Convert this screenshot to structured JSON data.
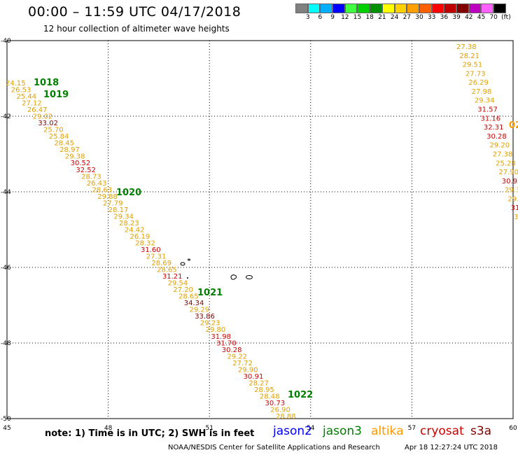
{
  "header": {
    "title": "00:00 – 11:59 UTC 04/17/2018",
    "subtitle": "12 hour collection of altimeter wave heights"
  },
  "legend": {
    "colors": [
      "#808080",
      "#00ffff",
      "#00b0ff",
      "#0000ff",
      "#40ff40",
      "#00d000",
      "#009000",
      "#ffff00",
      "#ffd000",
      "#ffa000",
      "#ff6000",
      "#ff0000",
      "#c00000",
      "#800000",
      "#c000c0",
      "#ff60ff",
      "#000000"
    ],
    "labels": [
      "3",
      "6",
      "9",
      "12",
      "15",
      "18",
      "21",
      "24",
      "27",
      "30",
      "33",
      "36",
      "39",
      "42",
      "45",
      "70",
      "(ft)"
    ]
  },
  "map": {
    "lon_ticks": [
      "45",
      "48",
      "51",
      "54",
      "57",
      "60"
    ],
    "lat_ticks": [
      "-40",
      "-42",
      "-44",
      "-46",
      "-48",
      "-50"
    ],
    "lon_range": [
      45,
      60
    ],
    "lat_range": [
      -40,
      -50
    ]
  },
  "track_left": {
    "values": [
      "24.15",
      "26.53",
      "25.44",
      "27.12",
      "26.47",
      "29.02",
      "33.02",
      "25.70",
      "25.84",
      "28.45",
      "28.97",
      "29.38",
      "30.52",
      "32.52",
      "28.73",
      "26.43",
      "28.63",
      "29.88",
      "27.79",
      "28.17",
      "29.34",
      "28.23",
      "24.42",
      "26.19",
      "28.32",
      "31.60",
      "27.31",
      "28.69",
      "28.65",
      "31.21",
      "29.54",
      "27.20",
      "28.65",
      "34.34",
      "29.29",
      "33.86",
      "29.23",
      "29.80",
      "31.98",
      "31.70",
      "30.28",
      "29.22",
      "27.72",
      "29.90",
      "30.91",
      "28.27",
      "28.95",
      "28.48",
      "30.73",
      "26.90",
      "28.88"
    ]
  },
  "track_right": {
    "values": [
      "27.38",
      "28.21",
      "29.51",
      "27.73",
      "26.29",
      "27.98",
      "29.34",
      "31.57",
      "31.16",
      "32.31",
      "30.28",
      "29.20",
      "27.38",
      "25.28",
      "27.90",
      "30.92",
      "29.3",
      "29.",
      "31",
      "3"
    ]
  },
  "pressure_labels": [
    "1018",
    "1019",
    "1020",
    "1021",
    "1022",
    "02"
  ],
  "note": "note: 1) Time is in UTC; 2) SWH is in feet",
  "satellites": {
    "jason2": "jason2",
    "jason3": "jason3",
    "altika": "altika",
    "cryosat": "cryosat",
    "s3a": "s3a"
  },
  "colors": {
    "jason2": "#0000ff",
    "jason3": "#008000",
    "altika": "#ff9900",
    "cryosat": "#cc0000",
    "s3a": "#800000",
    "pressure": "#008000",
    "swh_yellow": "#e0a000",
    "swh_orange": "#ff6000",
    "swh_red": "#cc0000",
    "swh_darkred": "#800000"
  },
  "footer": {
    "credit": "NOAA/NESDIS Center for Satellite Applications and Research",
    "timestamp": "Apr 18 12:27:24 UTC 2018"
  }
}
